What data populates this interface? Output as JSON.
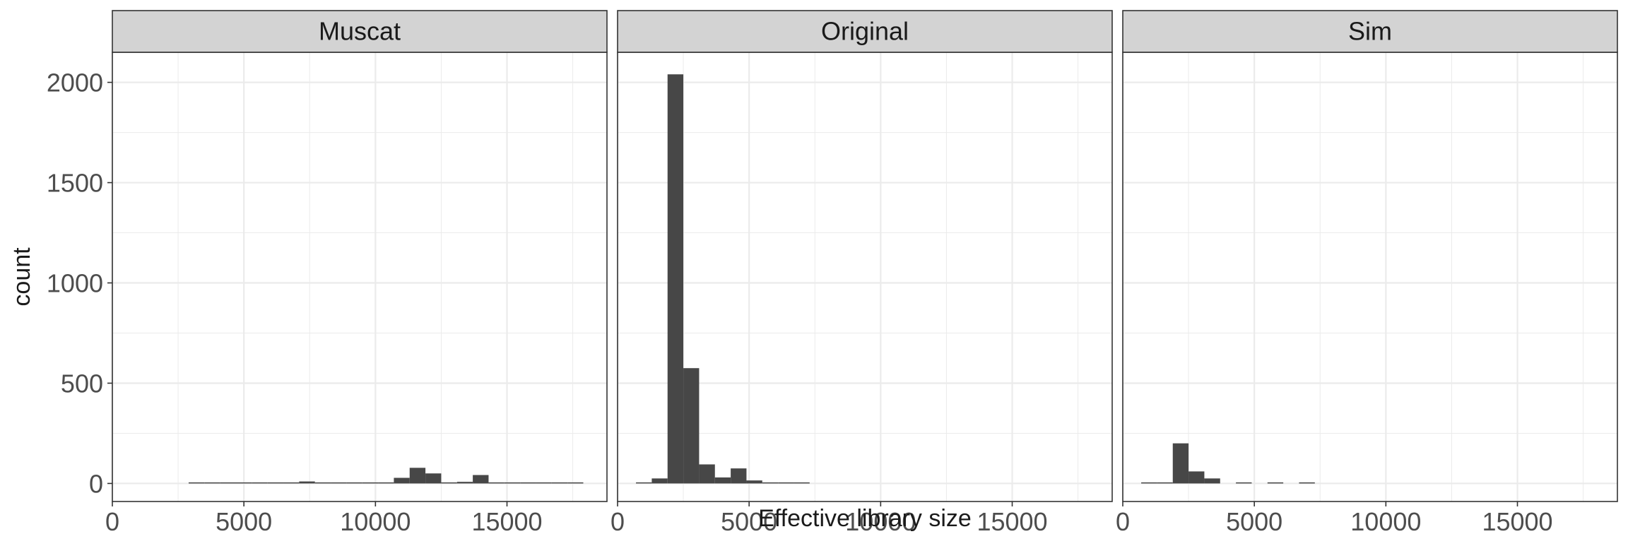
{
  "chart_data": {
    "type": "bar",
    "subtype": "faceted-histogram",
    "xlabel": "Effective library size",
    "ylabel": "count",
    "xlim": [
      0,
      18800
    ],
    "ylim": [
      -90,
      2150
    ],
    "x_ticks": [
      0,
      5000,
      10000,
      15000
    ],
    "y_ticks": [
      0,
      500,
      1000,
      1500,
      2000
    ],
    "bin_width": 600,
    "grid": true,
    "legend": "none",
    "theme": "bw",
    "bar_color": "#474747",
    "strip_fill": "#d3d3d3",
    "panels": [
      {
        "name": "Muscat",
        "bins": [
          {
            "x": 3200,
            "count": 1
          },
          {
            "x": 3800,
            "count": 1
          },
          {
            "x": 4400,
            "count": 2
          },
          {
            "x": 5000,
            "count": 2
          },
          {
            "x": 5600,
            "count": 3
          },
          {
            "x": 6200,
            "count": 3
          },
          {
            "x": 6800,
            "count": 1
          },
          {
            "x": 7400,
            "count": 10
          },
          {
            "x": 8000,
            "count": 3
          },
          {
            "x": 8600,
            "count": 1
          },
          {
            "x": 9200,
            "count": 2
          },
          {
            "x": 9800,
            "count": 2
          },
          {
            "x": 10400,
            "count": 2
          },
          {
            "x": 11000,
            "count": 28
          },
          {
            "x": 11600,
            "count": 78
          },
          {
            "x": 12200,
            "count": 50
          },
          {
            "x": 12800,
            "count": 1
          },
          {
            "x": 13400,
            "count": 8
          },
          {
            "x": 14000,
            "count": 42
          },
          {
            "x": 14600,
            "count": 3
          },
          {
            "x": 15200,
            "count": 1
          },
          {
            "x": 15800,
            "count": 3
          },
          {
            "x": 16400,
            "count": 3
          },
          {
            "x": 17000,
            "count": 1
          },
          {
            "x": 17600,
            "count": 1
          }
        ]
      },
      {
        "name": "Original",
        "bins": [
          {
            "x": 1000,
            "count": 5
          },
          {
            "x": 1600,
            "count": 25
          },
          {
            "x": 2200,
            "count": 2040
          },
          {
            "x": 2800,
            "count": 575
          },
          {
            "x": 3400,
            "count": 95
          },
          {
            "x": 4000,
            "count": 30
          },
          {
            "x": 4600,
            "count": 75
          },
          {
            "x": 5200,
            "count": 15
          },
          {
            "x": 5800,
            "count": 5
          },
          {
            "x": 6400,
            "count": 3
          },
          {
            "x": 7000,
            "count": 2
          }
        ]
      },
      {
        "name": "Sim",
        "bins": [
          {
            "x": 1000,
            "count": 2
          },
          {
            "x": 1600,
            "count": 5
          },
          {
            "x": 2200,
            "count": 200
          },
          {
            "x": 2800,
            "count": 60
          },
          {
            "x": 3400,
            "count": 25
          },
          {
            "x": 4600,
            "count": 2
          },
          {
            "x": 5800,
            "count": 1
          },
          {
            "x": 7000,
            "count": 1
          }
        ]
      }
    ]
  }
}
